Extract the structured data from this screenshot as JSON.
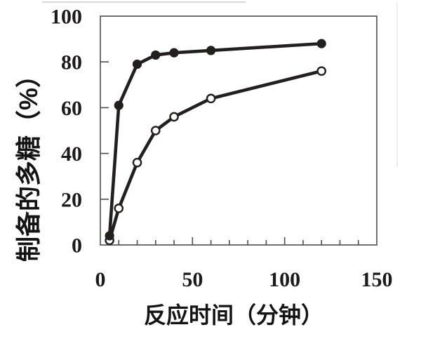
{
  "figure": {
    "background": "#ffffff"
  },
  "colors": {
    "series": "#241f1f",
    "axis": "#4d4d4d",
    "tick_label": "#1c1a1a",
    "axis_title": "#141414",
    "scan_artifact_h": "#d9d9d9",
    "scan_artifact_v": "#ececec",
    "open_marker_fill": "#ffffff"
  },
  "chart_data": {
    "type": "line",
    "title": "",
    "xlabel": "反应时间（分钟）",
    "ylabel": "制备的多糖（%）",
    "xlim": [
      0,
      150
    ],
    "ylim": [
      0,
      100
    ],
    "x_major_ticks": [
      0,
      50,
      100,
      150
    ],
    "x_minor_step": 10,
    "y_major_ticks": [
      0,
      20,
      40,
      60,
      80,
      100
    ],
    "grid": false,
    "legend_position": "none",
    "series": [
      {
        "name": "open-circle-series",
        "marker": "open-circle",
        "x": [
          5,
          10,
          20,
          30,
          40,
          60,
          120
        ],
        "y": [
          2,
          16,
          36,
          50,
          56,
          64,
          76
        ]
      },
      {
        "name": "filled-circle-series",
        "marker": "filled-circle",
        "x": [
          5,
          10,
          20,
          30,
          40,
          60,
          120
        ],
        "y": [
          4,
          61,
          79,
          83,
          84,
          85,
          88
        ]
      }
    ]
  }
}
